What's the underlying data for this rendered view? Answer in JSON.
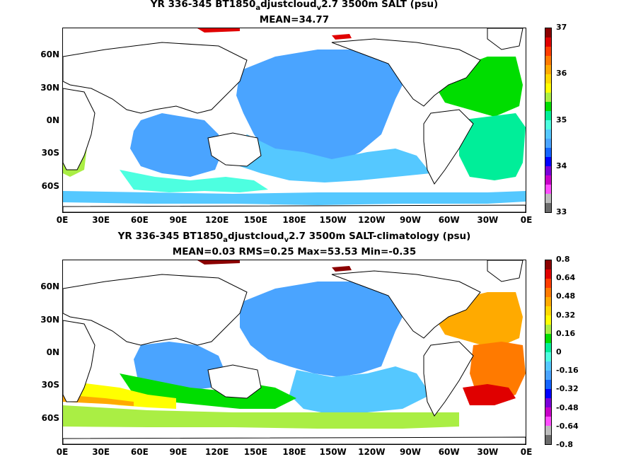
{
  "panels": [
    {
      "title_pre": "YR 336-345 BT1850",
      "title_sub1": "a",
      "title_mid": "djustcloud",
      "title_sub2": "v",
      "title_post": "2.7 3500m SALT (psu)",
      "subtitle": "MEAN=34.77",
      "colorbar_labels": [
        "37",
        "36",
        "35",
        "34",
        "33"
      ],
      "colorbar_colors": [
        "#6b6b6b",
        "#bdbdbd",
        "#ff4dff",
        "#c800c8",
        "#7a00d8",
        "#0000ff",
        "#1464ff",
        "#4aa4ff",
        "#55c8ff",
        "#4dffe0",
        "#00ee99",
        "#00dd00",
        "#aaee44",
        "#ffff00",
        "#ffd800",
        "#ffaa00",
        "#ff7a00",
        "#ff3c00",
        "#e00000",
        "#8b0000"
      ]
    },
    {
      "title_pre": "YR 336-345 BT1850",
      "title_sub1": "a",
      "title_mid": "djustcloud",
      "title_sub2": "v",
      "title_post": "2.7 3500m SALT-climatology (psu)",
      "subtitle": "MEAN=0.03   RMS=0.25   Max=53.53   Min=-0.35",
      "colorbar_labels": [
        "0.8",
        "0.64",
        "0.48",
        "0.32",
        "0.16",
        "0",
        "-0.16",
        "-0.32",
        "-0.48",
        "-0.64",
        "-0.8"
      ],
      "colorbar_colors": [
        "#6b6b6b",
        "#bdbdbd",
        "#ff4dff",
        "#c800c8",
        "#7a00d8",
        "#0000ff",
        "#1464ff",
        "#4aa4ff",
        "#55c8ff",
        "#4dffe0",
        "#00ee99",
        "#00dd00",
        "#aaee44",
        "#ffff00",
        "#ffd800",
        "#ffaa00",
        "#ff7a00",
        "#ff3c00",
        "#e00000",
        "#8b0000"
      ]
    }
  ],
  "lat_labels": [
    "60N",
    "30N",
    "0N",
    "30S",
    "60S"
  ],
  "lon_labels": [
    "0E",
    "30E",
    "60E",
    "90E",
    "120E",
    "150E",
    "180E",
    "150W",
    "120W",
    "90W",
    "60W",
    "30W",
    "0E"
  ],
  "chart_data": [
    {
      "type": "heatmap",
      "title": "YR 336-345 BT1850adjustcloudv2.7 3500m SALT (psu)",
      "subtitle": "MEAN=34.77",
      "x_ticks": [
        "0E",
        "30E",
        "60E",
        "90E",
        "120E",
        "150E",
        "180E",
        "150W",
        "120W",
        "90W",
        "60W",
        "30W",
        "0E"
      ],
      "y_ticks": [
        "60N",
        "30N",
        "0N",
        "30S",
        "60S"
      ],
      "colorbar": {
        "min": 33,
        "max": 37,
        "ticks": [
          37,
          36,
          35,
          34,
          33
        ]
      },
      "mean": 34.77
    },
    {
      "type": "heatmap",
      "title": "YR 336-345 BT1850adjustcloudv2.7 3500m SALT-climatology (psu)",
      "subtitle": "MEAN=0.03   RMS=0.25   Max=53.53   Min=-0.35",
      "x_ticks": [
        "0E",
        "30E",
        "60E",
        "90E",
        "120E",
        "150E",
        "180E",
        "150W",
        "120W",
        "90W",
        "60W",
        "30W",
        "0E"
      ],
      "y_ticks": [
        "60N",
        "30N",
        "0N",
        "30S",
        "60S"
      ],
      "colorbar": {
        "min": -0.8,
        "max": 0.8,
        "ticks": [
          0.8,
          0.64,
          0.48,
          0.32,
          0.16,
          0,
          -0.16,
          -0.32,
          -0.48,
          -0.64,
          -0.8
        ]
      },
      "mean": 0.03,
      "rms": 0.25,
      "max": 53.53,
      "min": -0.35
    }
  ]
}
